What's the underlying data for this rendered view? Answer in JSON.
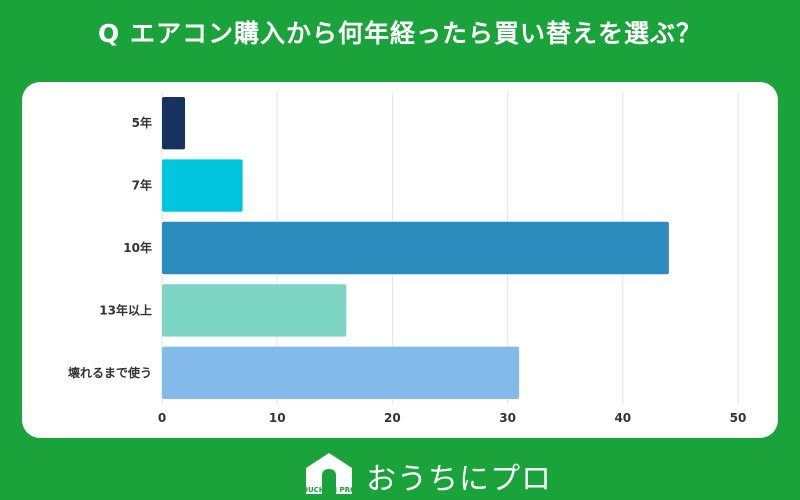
{
  "header": {
    "title": "Q エアコン購入から何年経ったら買い替えを選ぶ？"
  },
  "chart_data": {
    "type": "bar",
    "orientation": "horizontal",
    "title": "",
    "xlabel": "",
    "ylabel": "",
    "categories": [
      "5年",
      "7年",
      "10年",
      "13年以上",
      "壊れるまで使う"
    ],
    "values": [
      2,
      7,
      44,
      16,
      31
    ],
    "colors": [
      "#16335f",
      "#00c6dd",
      "#2c8bbd",
      "#7dd6c4",
      "#82bbe9"
    ],
    "xlim": [
      0,
      50
    ],
    "xticks": [
      0,
      10,
      20,
      30,
      40,
      50
    ],
    "grid": true,
    "legend": "none"
  },
  "footer": {
    "brand": "おうちにプロ",
    "logo_text": "OUCHI ni PRO",
    "logo_icon": "house-icon"
  }
}
